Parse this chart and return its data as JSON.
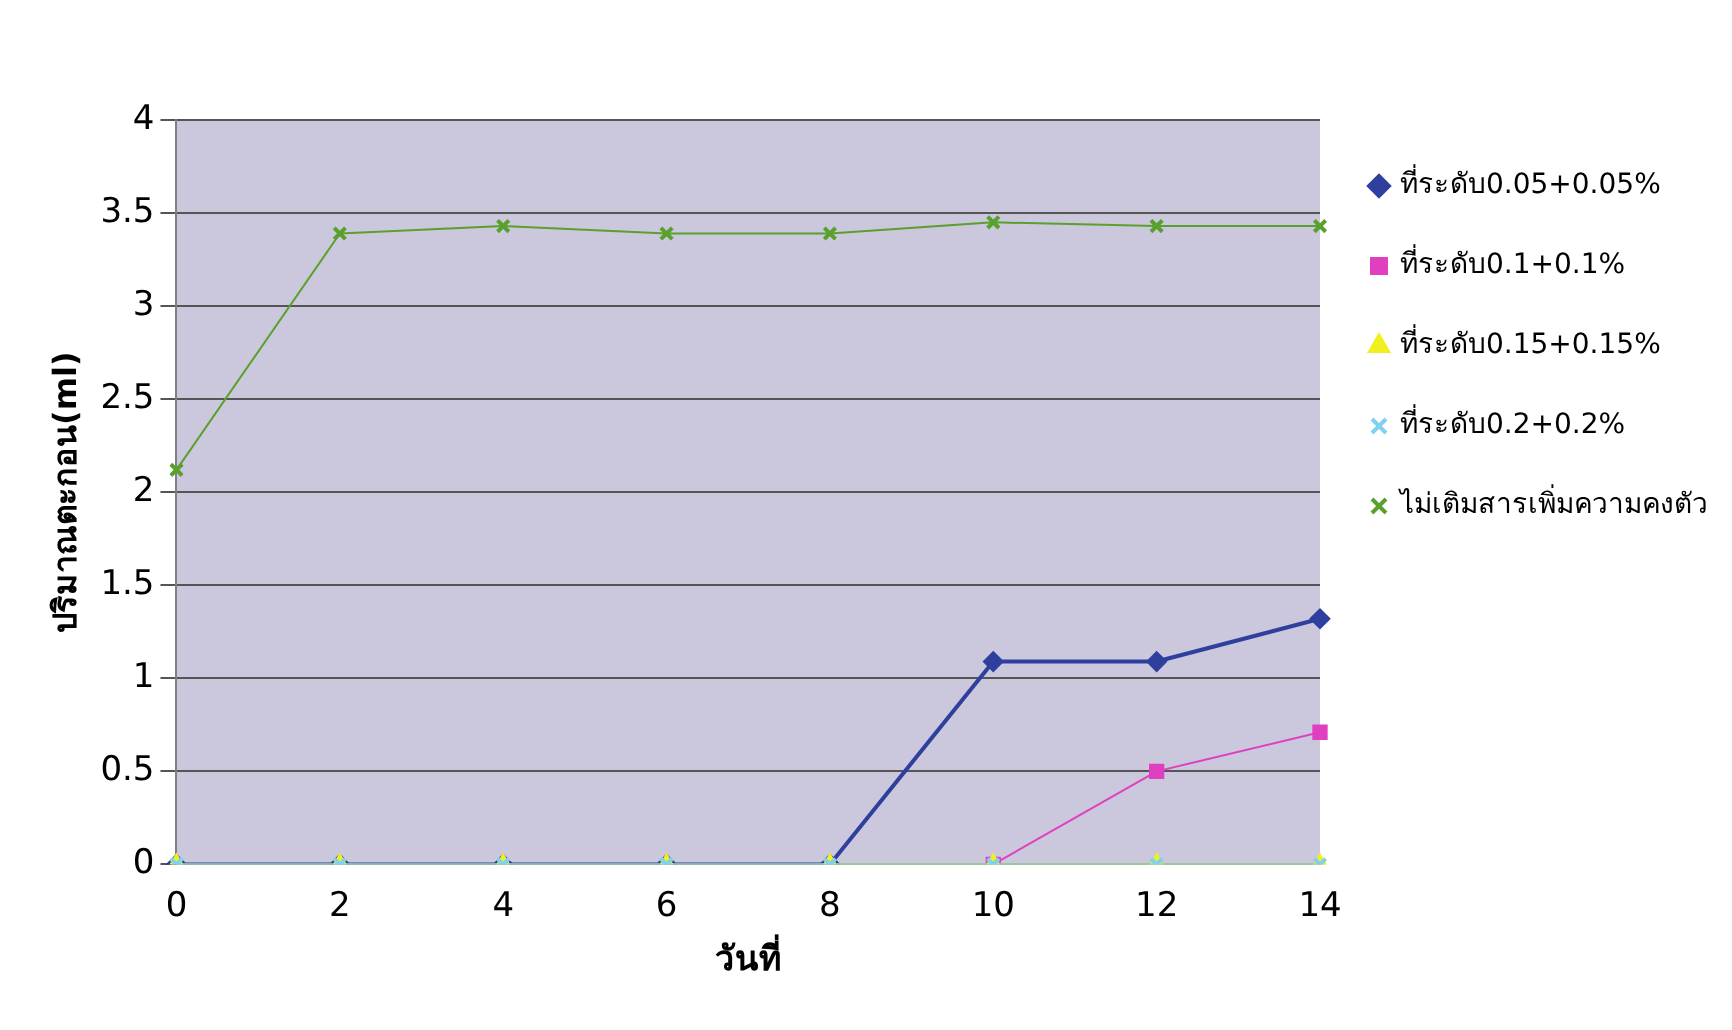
{
  "chart_data": {
    "type": "line",
    "xlabel": "วันที่",
    "ylabel": "ปริมาณตะกอน(ml)",
    "categories": [
      "0",
      "2",
      "4",
      "6",
      "8",
      "10",
      "12",
      "14"
    ],
    "ylim": [
      0,
      4
    ],
    "yticks": [
      0,
      0.5,
      1,
      1.5,
      2,
      2.5,
      3,
      3.5,
      4
    ],
    "grid": "y",
    "legend": "right",
    "line_style": "solid",
    "series": [
      {
        "name": "ที่ระดับ0.05+0.05%",
        "color": "#2e3f9e",
        "marker": "diamond",
        "values": [
          0,
          0,
          0,
          0,
          0,
          1.09,
          1.09,
          1.32
        ]
      },
      {
        "name": "ที่ระดับ0.1+0.1%",
        "color": "#e040c0",
        "marker": "square",
        "values": [
          null,
          null,
          null,
          null,
          null,
          0,
          0.5,
          0.71
        ]
      },
      {
        "name": "ที่ระดับ0.15+0.15%",
        "color": "#f0f020",
        "marker": "triangle",
        "values": [
          0,
          0,
          0,
          0,
          0,
          0,
          0,
          0
        ]
      },
      {
        "name": "ที่ระดับ0.2+0.2%",
        "color": "#80d0f0",
        "marker": "cross",
        "values": [
          0,
          0,
          0,
          0,
          0,
          0,
          0,
          0
        ]
      },
      {
        "name": "ไม่เติมสารเพิ่มความคงตัว",
        "color": "#5aa02c",
        "marker": "cross",
        "values": [
          2.12,
          3.39,
          3.43,
          3.39,
          3.39,
          3.45,
          3.43,
          3.43
        ]
      }
    ]
  }
}
